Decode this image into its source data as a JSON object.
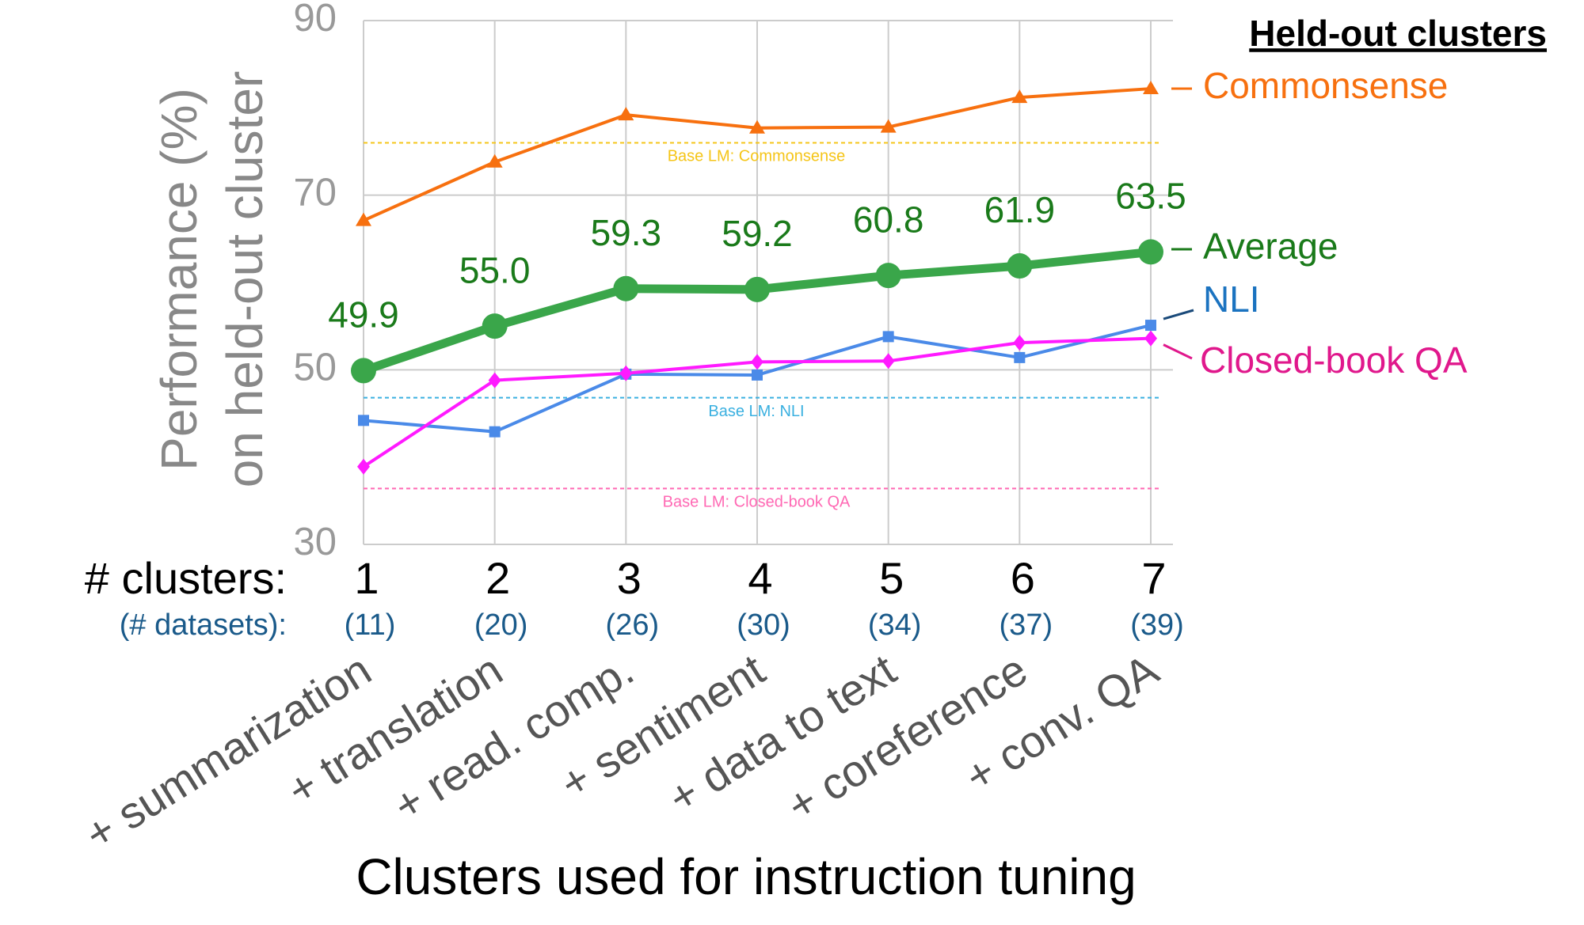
{
  "chart_data": {
    "type": "line",
    "x_label": "Clusters used for instruction tuning",
    "y_label": [
      "Performance (%)",
      "on held-out cluster"
    ],
    "row_labels": [
      "# clusters:",
      "(# datasets):"
    ],
    "categories": [
      "1",
      "2",
      "3",
      "4",
      "5",
      "6",
      "7"
    ],
    "datasets": [
      "(11)",
      "(20)",
      "(26)",
      "(30)",
      "(34)",
      "(37)",
      "(39)"
    ],
    "cluster_names": [
      "+ summarization",
      "+ translation",
      "+ read. comp.",
      "+ sentiment",
      "+ data to text",
      "+ coreference",
      "+ conv. QA"
    ],
    "ylim": [
      30,
      90
    ],
    "yticks": [
      30,
      50,
      70,
      90
    ],
    "grid": true,
    "legend_title": "Held-out clusters",
    "series": [
      {
        "name": "Commonsense",
        "color": "#f7700f",
        "label_color": "#f7700f",
        "marker": "triangle",
        "line_width": 4,
        "values": [
          67.1,
          73.8,
          79.2,
          77.7,
          77.8,
          81.2,
          82.2
        ]
      },
      {
        "name": "Average",
        "color": "#3aa64a",
        "label_color": "#1a7a1a",
        "marker": "circle",
        "line_width": 11,
        "values": [
          49.9,
          55.0,
          59.3,
          59.2,
          60.8,
          61.9,
          63.5
        ],
        "value_labels": [
          "49.9",
          "55.0",
          "59.3",
          "59.2",
          "60.8",
          "61.9",
          "63.5"
        ]
      },
      {
        "name": "NLI",
        "color": "#4a8ae8",
        "label_color": "#1b73c0",
        "marker": "square",
        "line_width": 4,
        "values": [
          44.2,
          42.9,
          49.5,
          49.4,
          53.8,
          51.4,
          55.1
        ]
      },
      {
        "name": "Closed-book QA",
        "color": "#ff1aff",
        "label_color": "#e0188c",
        "marker": "diamond",
        "line_width": 4,
        "values": [
          38.9,
          48.8,
          49.6,
          50.9,
          51.0,
          53.1,
          53.6
        ]
      }
    ],
    "baselines": [
      {
        "label": "Base LM: Commonsense",
        "value": 76.0,
        "color": "#f5c518"
      },
      {
        "label": "Base LM: NLI",
        "value": 46.8,
        "color": "#3ab0e0"
      },
      {
        "label": "Base LM: Closed-book QA",
        "value": 36.4,
        "color": "#ff69b4"
      }
    ]
  }
}
